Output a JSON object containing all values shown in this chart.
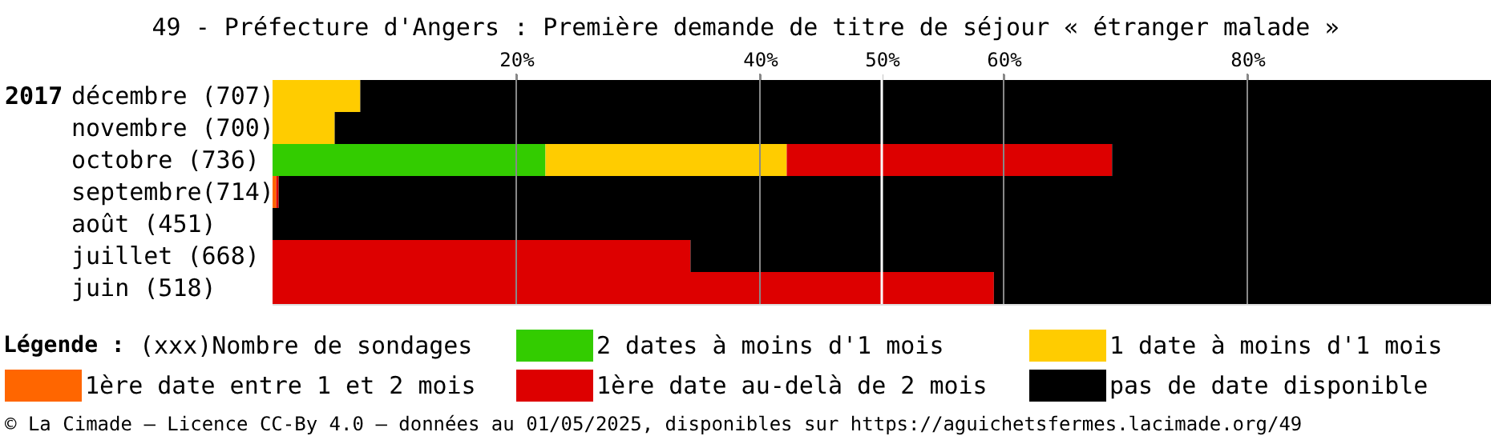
{
  "chart_data": {
    "type": "bar",
    "orientation": "horizontal",
    "stacked": true,
    "title": "49 - Préfecture d'Angers : Première demande de titre de séjour « étranger malade »",
    "categories": [
      "décembre (707)",
      "novembre (700)",
      "octobre (736)",
      "septembre(714)",
      "août (451)",
      "juillet (668)",
      "juin (518)"
    ],
    "series": [
      {
        "name": "2 dates à moins d'1 mois",
        "color": "#33cc00",
        "values": [
          0,
          0,
          22.4,
          0,
          0,
          0,
          0
        ]
      },
      {
        "name": "1 date à moins d'1 mois",
        "color": "#ffcc00",
        "values": [
          7.2,
          5.1,
          19.8,
          0,
          0,
          0,
          0
        ]
      },
      {
        "name": "1ère date entre 1 et 2 mois",
        "color": "#ff6600",
        "values": [
          0,
          0,
          0,
          0.3,
          0,
          0,
          0
        ]
      },
      {
        "name": "1ère date au-delà de 2 mois",
        "color": "#dd0000",
        "values": [
          0,
          0,
          26.7,
          0.2,
          0,
          34.3,
          59.2
        ]
      },
      {
        "name": "pas de date disponible",
        "color": "#000000",
        "values": [
          92.8,
          94.9,
          31.1,
          99.5,
          100,
          65.7,
          40.8
        ]
      }
    ],
    "xlim": [
      0,
      100
    ],
    "xticks": [
      {
        "value": 20,
        "label": "20%"
      },
      {
        "value": 40,
        "label": "40%"
      },
      {
        "value": 50,
        "label": "50%"
      },
      {
        "value": 60,
        "label": "60%"
      },
      {
        "value": 80,
        "label": "80%"
      }
    ],
    "grid": "x",
    "ref_lines": [
      {
        "axis": "x",
        "value": 50,
        "color": "#ffffff"
      }
    ],
    "legend": "bottom",
    "legend_title": "Légende :",
    "annotations": [
      "2017",
      "(xxx)Nombre de sondages",
      "© La Cimade — Licence CC-By 4.0 — données au 01/05/2025, disponibles sur https://aguichetsfermes.lacimade.org/49"
    ]
  }
}
